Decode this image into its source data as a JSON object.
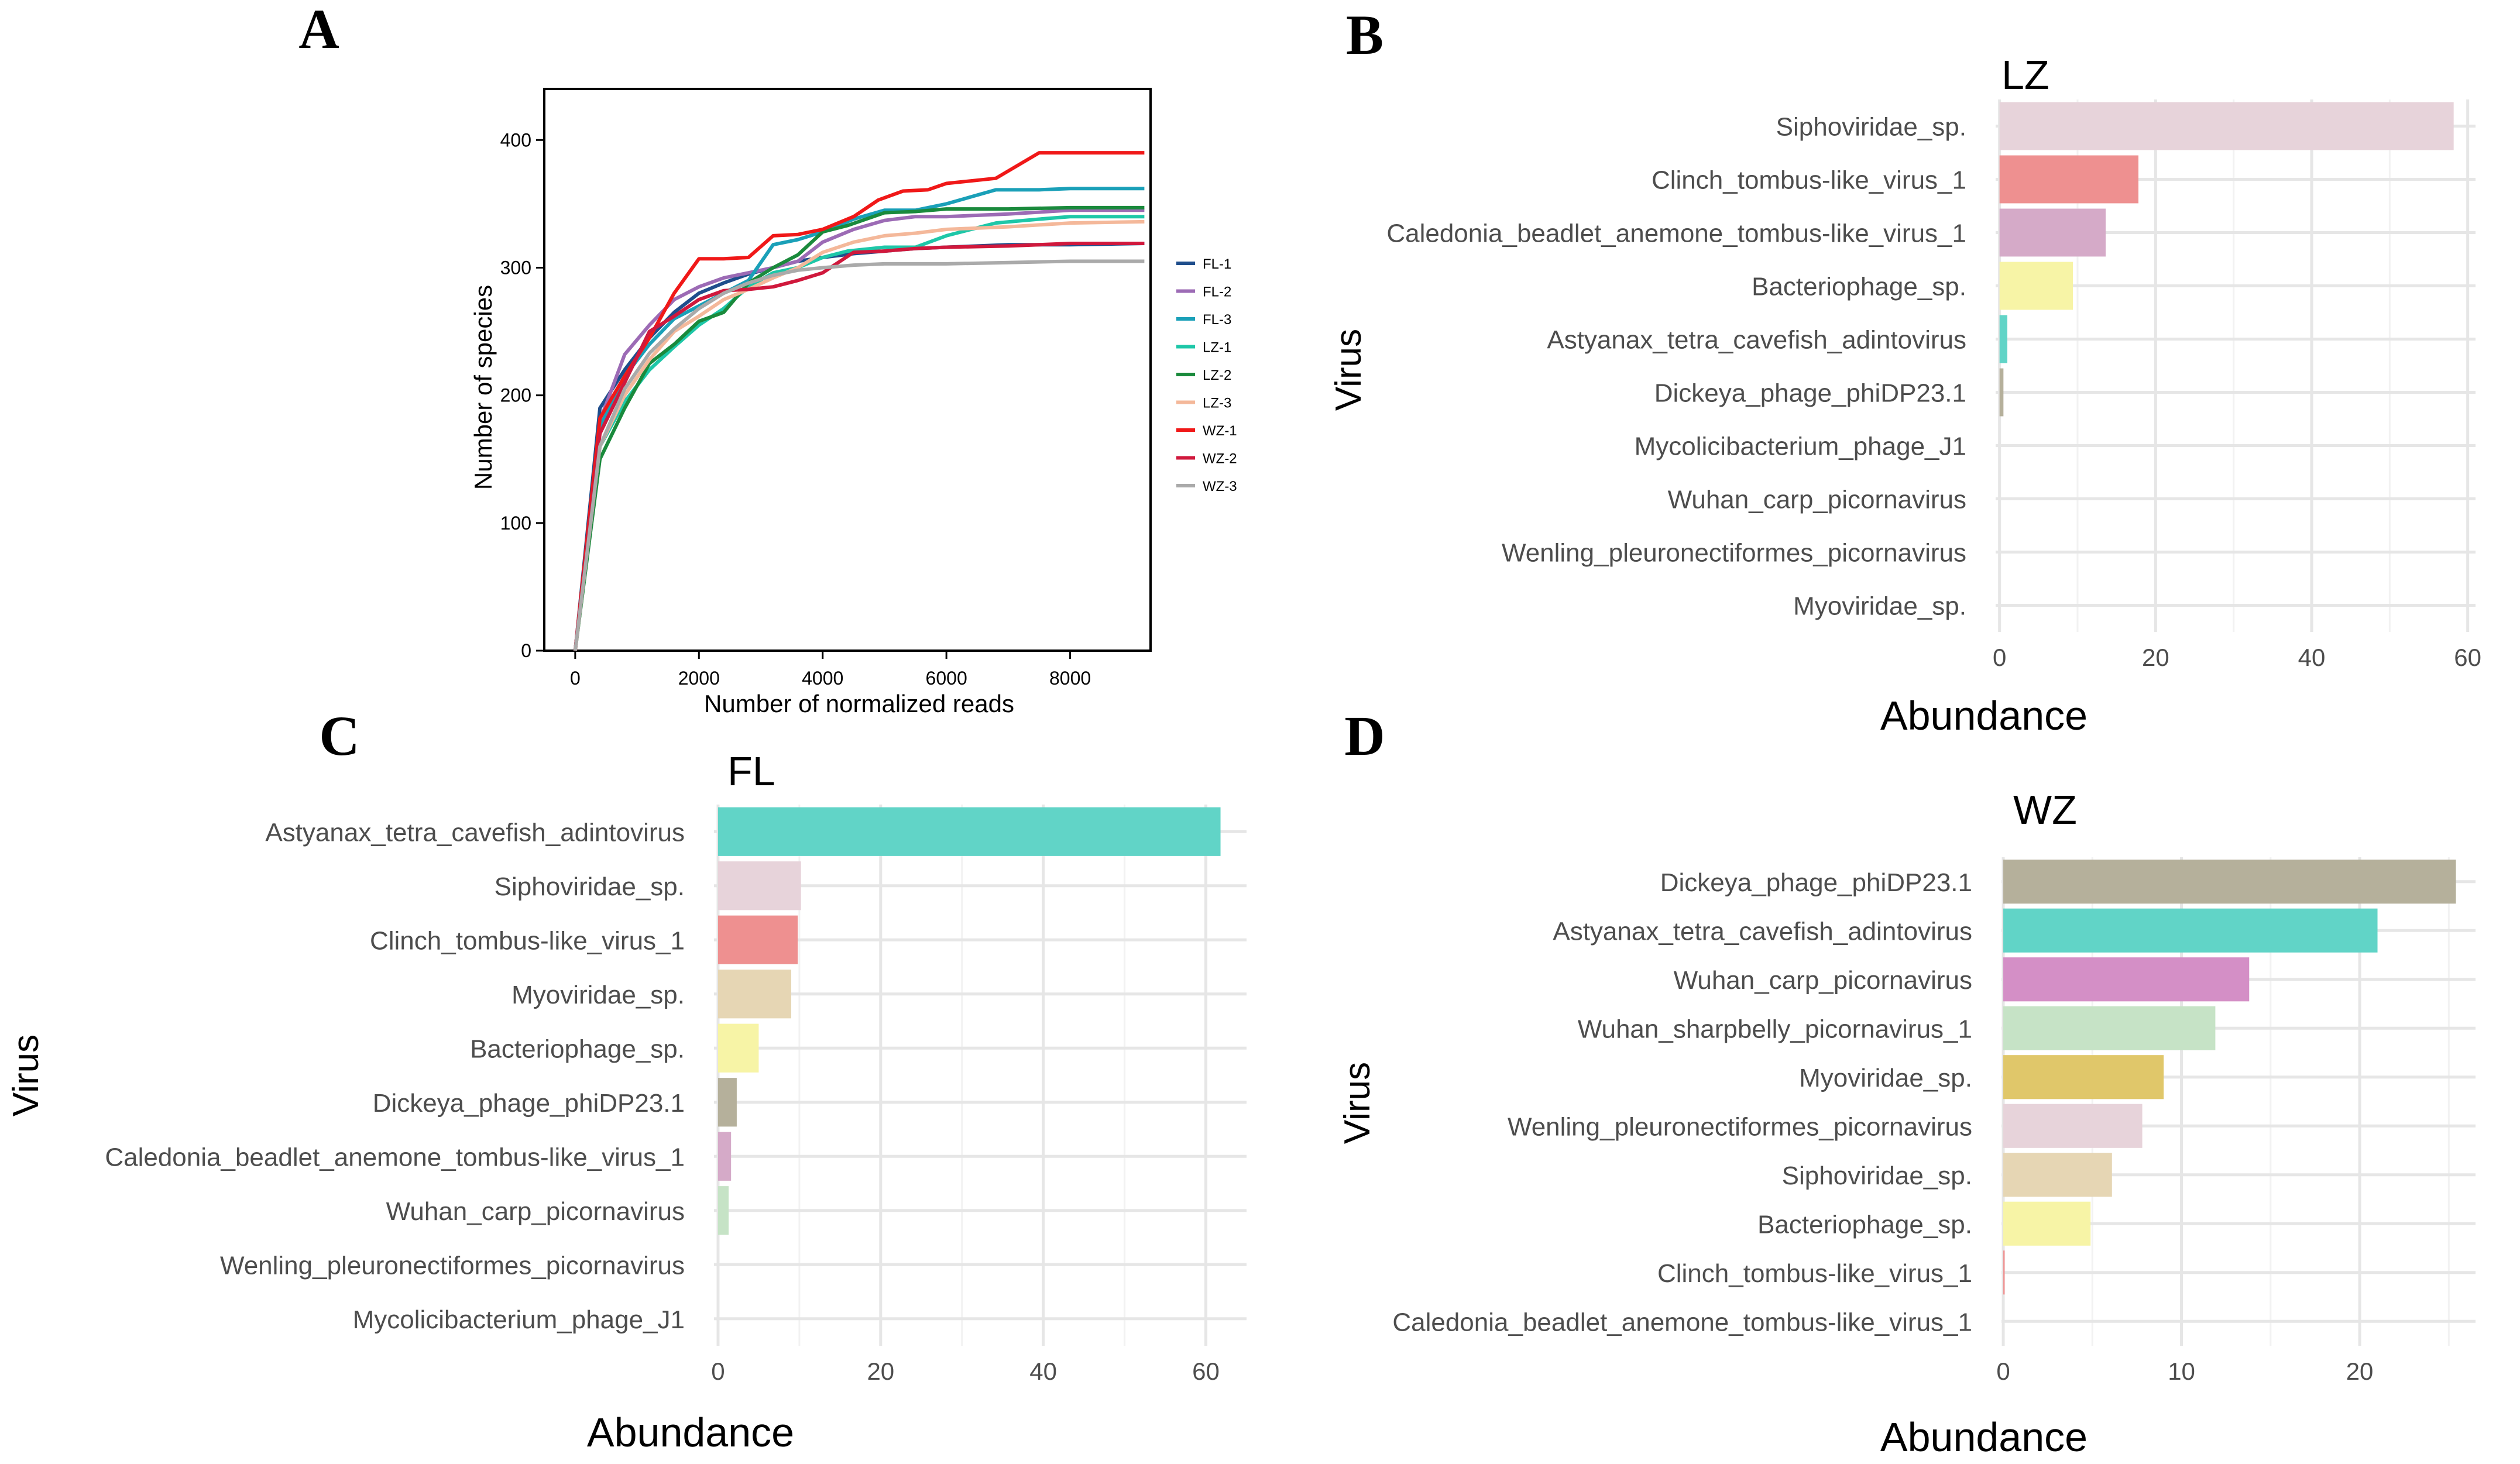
{
  "chart_data": [
    {
      "panel": "A",
      "type": "line",
      "title": "",
      "xlabel": "Number of normalized reads",
      "ylabel": "Number of species",
      "xlim": [
        -500,
        9300
      ],
      "ylim": [
        0,
        440
      ],
      "xticks": [
        "0",
        "2000",
        "4000",
        "6000",
        "8000"
      ],
      "yticks": [
        "0",
        "100",
        "200",
        "300",
        "400"
      ],
      "legend_position": "right",
      "series": [
        {
          "name": "FL-1",
          "color": "#1f4e8c",
          "points": [
            [
              0,
              0
            ],
            [
              400,
              190
            ],
            [
              800,
              220
            ],
            [
              1200,
              245
            ],
            [
              1600,
              265
            ],
            [
              2000,
              280
            ],
            [
              2400,
              288
            ],
            [
              2800,
              295
            ],
            [
              3200,
              300
            ],
            [
              3600,
              305
            ],
            [
              4000,
              308
            ],
            [
              4500,
              311
            ],
            [
              5000,
              313
            ],
            [
              5500,
              315
            ],
            [
              6000,
              316
            ],
            [
              6500,
              317
            ],
            [
              7000,
              318
            ],
            [
              8000,
              318
            ],
            [
              9200,
              319
            ]
          ]
        },
        {
          "name": "FL-2",
          "color": "#9c6bb5",
          "points": [
            [
              0,
              0
            ],
            [
              400,
              180
            ],
            [
              800,
              232
            ],
            [
              1200,
              255
            ],
            [
              1600,
              275
            ],
            [
              2000,
              285
            ],
            [
              2400,
              292
            ],
            [
              2800,
              296
            ],
            [
              3200,
              300
            ],
            [
              3600,
              305
            ],
            [
              4000,
              320
            ],
            [
              4500,
              330
            ],
            [
              5000,
              337
            ],
            [
              5500,
              340
            ],
            [
              6000,
              340
            ],
            [
              7000,
              342
            ],
            [
              8000,
              345
            ],
            [
              9200,
              345
            ]
          ]
        },
        {
          "name": "FL-3",
          "color": "#1aa0b8",
          "points": [
            [
              0,
              0
            ],
            [
              400,
              175
            ],
            [
              800,
              215
            ],
            [
              1200,
              240
            ],
            [
              1600,
              260
            ],
            [
              2000,
              270
            ],
            [
              2400,
              280
            ],
            [
              2800,
              290
            ],
            [
              3200,
              318
            ],
            [
              3600,
              322
            ],
            [
              4000,
              328
            ],
            [
              4500,
              338
            ],
            [
              5000,
              345
            ],
            [
              5500,
              345
            ],
            [
              6000,
              350
            ],
            [
              6800,
              361
            ],
            [
              7500,
              361
            ],
            [
              8000,
              362
            ],
            [
              9200,
              362
            ]
          ]
        },
        {
          "name": "LZ-1",
          "color": "#1ec7a8",
          "points": [
            [
              0,
              0
            ],
            [
              400,
              160
            ],
            [
              800,
              195
            ],
            [
              1200,
              220
            ],
            [
              1600,
              238
            ],
            [
              2000,
              255
            ],
            [
              2400,
              268
            ],
            [
              2800,
              285
            ],
            [
              3200,
              296
            ],
            [
              3600,
              300
            ],
            [
              4000,
              308
            ],
            [
              4400,
              313
            ],
            [
              5000,
              316
            ],
            [
              5500,
              316
            ],
            [
              6000,
              325
            ],
            [
              6800,
              335
            ],
            [
              7500,
              338
            ],
            [
              8000,
              340
            ],
            [
              9200,
              340
            ]
          ]
        },
        {
          "name": "LZ-2",
          "color": "#1a8a3c",
          "points": [
            [
              0,
              0
            ],
            [
              400,
              150
            ],
            [
              800,
              190
            ],
            [
              1200,
              225
            ],
            [
              1600,
              240
            ],
            [
              2000,
              258
            ],
            [
              2400,
              265
            ],
            [
              2800,
              288
            ],
            [
              3200,
              300
            ],
            [
              3600,
              310
            ],
            [
              4000,
              328
            ],
            [
              4400,
              333
            ],
            [
              5000,
              343
            ],
            [
              5500,
              344
            ],
            [
              6000,
              346
            ],
            [
              7000,
              346
            ],
            [
              8000,
              347
            ],
            [
              9200,
              347
            ]
          ]
        },
        {
          "name": "LZ-3",
          "color": "#f4b89a",
          "points": [
            [
              0,
              0
            ],
            [
              400,
              160
            ],
            [
              800,
              200
            ],
            [
              1200,
              228
            ],
            [
              1600,
              250
            ],
            [
              2000,
              262
            ],
            [
              2400,
              275
            ],
            [
              2800,
              283
            ],
            [
              3200,
              292
            ],
            [
              3600,
              300
            ],
            [
              4000,
              312
            ],
            [
              4500,
              320
            ],
            [
              5000,
              325
            ],
            [
              5500,
              327
            ],
            [
              6000,
              330
            ],
            [
              7000,
              332
            ],
            [
              8000,
              335
            ],
            [
              9200,
              336
            ]
          ]
        },
        {
          "name": "WZ-1",
          "color": "#f01818",
          "points": [
            [
              0,
              0
            ],
            [
              400,
              182
            ],
            [
              800,
              215
            ],
            [
              1200,
              245
            ],
            [
              1600,
              280
            ],
            [
              2000,
              307
            ],
            [
              2400,
              307
            ],
            [
              2800,
              308
            ],
            [
              3200,
              325
            ],
            [
              3600,
              326
            ],
            [
              4000,
              330
            ],
            [
              4500,
              340
            ],
            [
              4900,
              353
            ],
            [
              5300,
              360
            ],
            [
              5700,
              361
            ],
            [
              6000,
              366
            ],
            [
              6800,
              370
            ],
            [
              7500,
              390
            ],
            [
              8000,
              390
            ],
            [
              9200,
              390
            ]
          ]
        },
        {
          "name": "WZ-2",
          "color": "#d0183c",
          "points": [
            [
              0,
              0
            ],
            [
              400,
              170
            ],
            [
              800,
              210
            ],
            [
              1200,
              250
            ],
            [
              1600,
              262
            ],
            [
              2000,
              275
            ],
            [
              2400,
              282
            ],
            [
              2800,
              283
            ],
            [
              3200,
              285
            ],
            [
              3600,
              290
            ],
            [
              4000,
              296
            ],
            [
              4500,
              312
            ],
            [
              5000,
              313
            ],
            [
              5500,
              315
            ],
            [
              6000,
              316
            ],
            [
              7000,
              317
            ],
            [
              8000,
              319
            ],
            [
              9200,
              319
            ]
          ]
        },
        {
          "name": "WZ-3",
          "color": "#aaaaaa",
          "points": [
            [
              0,
              0
            ],
            [
              400,
              160
            ],
            [
              800,
              205
            ],
            [
              1200,
              233
            ],
            [
              1600,
              252
            ],
            [
              2000,
              268
            ],
            [
              2400,
              280
            ],
            [
              2800,
              288
            ],
            [
              3200,
              294
            ],
            [
              3600,
              298
            ],
            [
              4000,
              300
            ],
            [
              4500,
              302
            ],
            [
              5000,
              303
            ],
            [
              6000,
              303
            ],
            [
              7000,
              304
            ],
            [
              8000,
              305
            ],
            [
              9200,
              305
            ]
          ]
        }
      ]
    },
    {
      "panel": "B",
      "type": "bar",
      "orientation": "horizontal",
      "title": "LZ",
      "xlabel": "Abundance",
      "ylabel": "Virus",
      "xlim": [
        -0.5,
        61
      ],
      "xticks": [
        0,
        20,
        40,
        60
      ],
      "categories": [
        "Siphoviridae_sp.",
        "Clinch_tombus-like_virus_1",
        "Caledonia_beadlet_anemone_tombus-like_virus_1",
        "Bacteriophage_sp.",
        "Astyanax_tetra_cavefish_adintovirus",
        "Dickeya_phage_phiDP23.1",
        "Mycolicibacterium_phage_J1",
        "Wuhan_carp_picornavirus",
        "Wenling_pleuronectiformes_picornavirus",
        "Myoviridae_sp."
      ],
      "values": [
        58.2,
        17.8,
        13.6,
        9.4,
        1.0,
        0.5,
        0,
        0,
        0,
        0
      ],
      "colors": [
        "#e7d3da",
        "#ee9090",
        "#d5aac8",
        "#f7f4a6",
        "#61d4c7",
        "#b5b09b",
        "#e0c76a",
        "#c6e3c6",
        "#d48fc6",
        "#e6d6b4"
      ]
    },
    {
      "panel": "C",
      "type": "bar",
      "orientation": "horizontal",
      "title": "FL",
      "xlabel": "Abundance",
      "ylabel": "Virus",
      "xlim": [
        -0.5,
        65
      ],
      "xticks": [
        0,
        20,
        40,
        60
      ],
      "categories": [
        "Astyanax_tetra_cavefish_adintovirus",
        "Siphoviridae_sp.",
        "Clinch_tombus-like_virus_1",
        "Myoviridae_sp.",
        "Bacteriophage_sp.",
        "Dickeya_phage_phiDP23.1",
        "Caledonia_beadlet_anemone_tombus-like_virus_1",
        "Wuhan_carp_picornavirus",
        "Wenling_pleuronectiformes_picornavirus",
        "Mycolicibacterium_phage_J1"
      ],
      "values": [
        61.8,
        10.2,
        9.8,
        9.0,
        5.0,
        2.3,
        1.6,
        1.3,
        0,
        0
      ],
      "colors": [
        "#61d4c7",
        "#e7d3da",
        "#ee9090",
        "#e6d6b4",
        "#f7f4a6",
        "#b5b09b",
        "#d5aac8",
        "#c6e3c6",
        "#d48fc6",
        "#e0c76a"
      ]
    },
    {
      "panel": "D",
      "type": "bar",
      "orientation": "horizontal",
      "title": "WZ",
      "xlabel": "Abundance",
      "ylabel": "Virus",
      "xlim": [
        -0.1,
        26.5
      ],
      "xticks": [
        0,
        10,
        20
      ],
      "categories": [
        "Dickeya_phage_phiDP23.1",
        "Astyanax_tetra_cavefish_adintovirus",
        "Wuhan_carp_picornavirus",
        "Wuhan_sharpbelly_picornavirus_1",
        "Myoviridae_sp.",
        "Wenling_pleuronectiformes_picornavirus",
        "Siphoviridae_sp.",
        "Bacteriophage_sp.",
        "Clinch_tombus-like_virus_1",
        "Caledonia_beadlet_anemone_tombus-like_virus_1"
      ],
      "values": [
        25.4,
        21.0,
        13.8,
        11.9,
        9.0,
        7.8,
        6.1,
        4.9,
        0.08,
        0
      ],
      "colors": [
        "#b5b09b",
        "#61d4c7",
        "#d48fc6",
        "#c6e3c6",
        "#e0c76a",
        "#e7d3da",
        "#e6d6b4",
        "#f7f4a6",
        "#ee9090",
        "#d5aac8"
      ]
    }
  ]
}
